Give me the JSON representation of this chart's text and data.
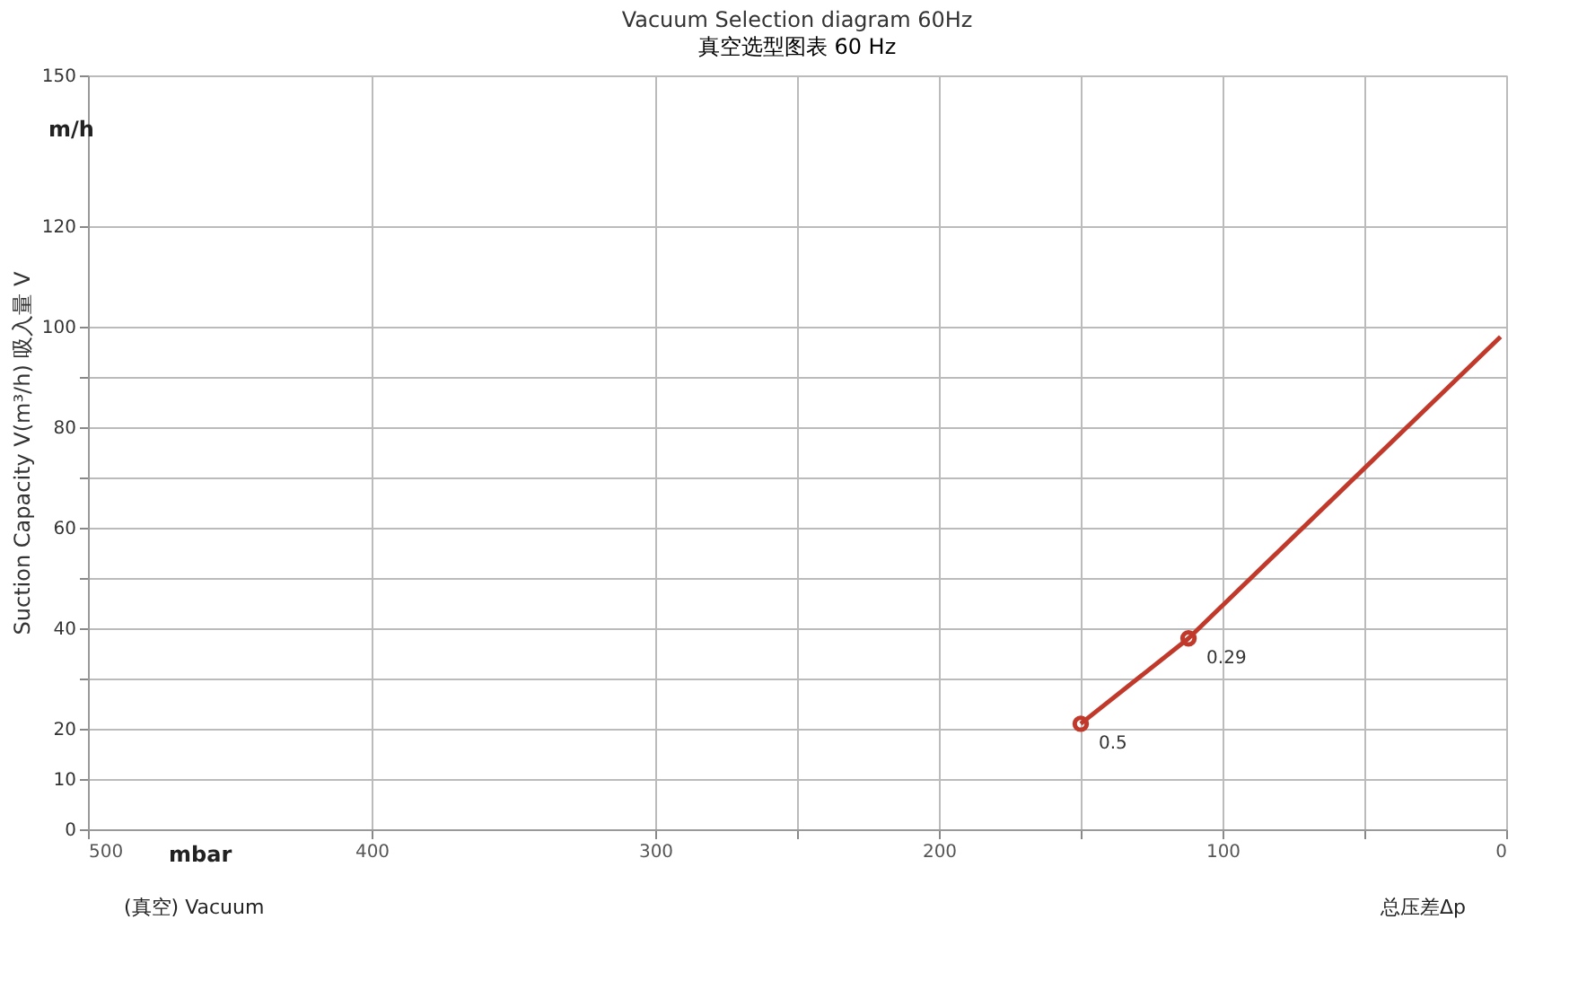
{
  "chart_data": {
    "type": "line",
    "title": "Vacuum Selection diagram 60Hz",
    "subtitle": "真空选型图表 60 Hz",
    "ylabel": "Suction Capacity V(m³/h)  吸入量 V",
    "series": [
      {
        "color": "#c0392b",
        "x": [
          150,
          112,
          2
        ],
        "values": [
          21,
          38,
          98
        ],
        "marker": "none"
      },
      {
        "type": "scatter",
        "color": "#c0392b",
        "x": [
          150,
          112
        ],
        "values": [
          21,
          38
        ],
        "marker": "circle"
      }
    ],
    "xlim": [
      500,
      0
    ],
    "xticks": [
      500,
      400,
      300,
      {
        "value": 250,
        "label": null
      },
      200,
      {
        "value": 150,
        "label": null
      },
      100,
      {
        "value": 50,
        "label": null
      },
      0
    ],
    "ylim": [
      0,
      150
    ],
    "yticks": [
      0,
      10,
      20,
      {
        "value": 30,
        "label": null
      },
      40,
      {
        "value": 50,
        "label": null
      },
      60,
      {
        "value": 70,
        "label": null
      },
      80,
      {
        "value": 90,
        "label": null
      },
      100,
      120,
      150
    ],
    "grid": true,
    "annotations": [
      {
        "text": "0.5",
        "x": 150,
        "y": 21
      },
      {
        "text": "0.29",
        "x": 112,
        "y": 38
      },
      "m/h",
      "mbar",
      "(真空) Vacuum",
      "总压差Δp"
    ]
  }
}
